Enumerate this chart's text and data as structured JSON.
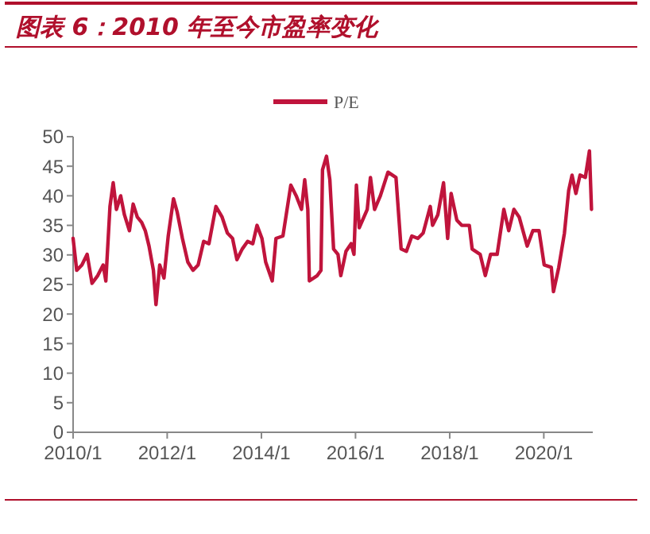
{
  "chart_data": {
    "type": "line",
    "title": "图表 6：2010 年至今市盈率变化",
    "legend": "top",
    "xlim": [
      "2010-01-01",
      "2021-01-15"
    ],
    "ylim": [
      0,
      50
    ],
    "yticks": [
      0,
      5,
      10,
      15,
      20,
      25,
      30,
      35,
      40,
      45,
      50
    ],
    "xticks": [
      {
        "value": "2010-01-01",
        "label": "2010/1"
      },
      {
        "value": "2012-01-01",
        "label": "2012/1"
      },
      {
        "value": "2014-01-01",
        "label": "2014/1"
      },
      {
        "value": "2016-01-01",
        "label": "2016/1"
      },
      {
        "value": "2018-01-01",
        "label": "2018/1"
      },
      {
        "value": "2020-01-01",
        "label": "2020/1"
      }
    ],
    "x": [
      "2010-01-01",
      "2010-01-29",
      "2010-03-10",
      "2010-04-20",
      "2010-05-28",
      "2010-07-11",
      "2010-08-22",
      "2010-09-12",
      "2010-10-14",
      "2010-11-08",
      "2010-12-03",
      "2011-01-05",
      "2011-02-03",
      "2011-03-14",
      "2011-04-12",
      "2011-05-14",
      "2011-06-17",
      "2011-07-15",
      "2011-08-13",
      "2011-09-16",
      "2011-10-06",
      "2011-11-04",
      "2011-12-07",
      "2012-01-09",
      "2012-02-19",
      "2012-03-18",
      "2012-04-28",
      "2012-06-09",
      "2012-07-19",
      "2012-08-28",
      "2012-10-10",
      "2012-11-20",
      "2013-01-13",
      "2013-03-02",
      "2013-04-12",
      "2013-05-22",
      "2013-06-25",
      "2013-08-05",
      "2013-09-16",
      "2013-10-26",
      "2013-11-28",
      "2014-01-05",
      "2014-02-03",
      "2014-03-26",
      "2014-04-24",
      "2014-06-17",
      "2014-08-17",
      "2014-09-28",
      "2014-11-08",
      "2014-12-03",
      "2014-12-27",
      "2015-01-08",
      "2015-03-10",
      "2015-04-08",
      "2015-04-20",
      "2015-05-21",
      "2015-06-16",
      "2015-07-15",
      "2015-08-18",
      "2015-09-09",
      "2015-10-19",
      "2015-11-28",
      "2015-12-20",
      "2016-01-08",
      "2016-01-30",
      "2016-04-01",
      "2016-04-26",
      "2016-05-28",
      "2016-07-12",
      "2016-09-09",
      "2016-11-10",
      "2016-12-20",
      "2017-01-30",
      "2017-03-13",
      "2017-04-29",
      "2017-06-09",
      "2017-08-03",
      "2017-08-21",
      "2017-10-01",
      "2017-11-14",
      "2017-12-16",
      "2018-01-12",
      "2018-02-25",
      "2018-04-04",
      "2018-06-02",
      "2018-06-24",
      "2018-08-25",
      "2018-10-04",
      "2018-11-14",
      "2019-01-04",
      "2019-02-25",
      "2019-04-04",
      "2019-05-14",
      "2019-06-24",
      "2019-08-25",
      "2019-10-08",
      "2019-11-25",
      "2020-01-04",
      "2020-02-28",
      "2020-03-16",
      "2020-04-26",
      "2020-06-09",
      "2020-07-12",
      "2020-08-07",
      "2020-09-06",
      "2020-10-08",
      "2020-11-18",
      "2020-12-20",
      "2021-01-05"
    ],
    "series": [
      {
        "name": "P/E",
        "color": "#c0143c",
        "values": [
          32.8,
          27.4,
          28.3,
          30.1,
          25.2,
          26.5,
          28.3,
          25.6,
          38.2,
          42.2,
          37.7,
          40.0,
          36.8,
          34.1,
          38.6,
          36.4,
          35.5,
          34.1,
          31.5,
          27.4,
          21.6,
          28.3,
          26.1,
          33.2,
          39.5,
          37.3,
          32.8,
          28.8,
          27.4,
          28.3,
          32.3,
          31.9,
          38.2,
          36.4,
          33.7,
          32.8,
          29.2,
          31.0,
          32.3,
          31.9,
          35.0,
          32.8,
          28.8,
          25.6,
          32.8,
          33.2,
          41.8,
          40.0,
          37.7,
          42.7,
          37.7,
          25.6,
          26.5,
          27.4,
          44.4,
          46.7,
          42.7,
          31.0,
          30.1,
          26.5,
          30.6,
          31.9,
          30.1,
          41.8,
          34.6,
          37.7,
          43.1,
          37.7,
          40.0,
          44.0,
          43.1,
          31.0,
          30.6,
          33.2,
          32.8,
          33.7,
          38.2,
          35.0,
          36.8,
          42.2,
          32.8,
          40.4,
          35.9,
          35.0,
          35.0,
          31.0,
          30.1,
          26.5,
          30.1,
          30.1,
          37.7,
          34.1,
          37.7,
          36.4,
          31.5,
          34.1,
          34.1,
          28.3,
          27.9,
          23.8,
          27.9,
          33.7,
          40.9,
          43.5,
          40.4,
          43.5,
          43.1,
          47.6,
          37.7
        ]
      }
    ]
  }
}
